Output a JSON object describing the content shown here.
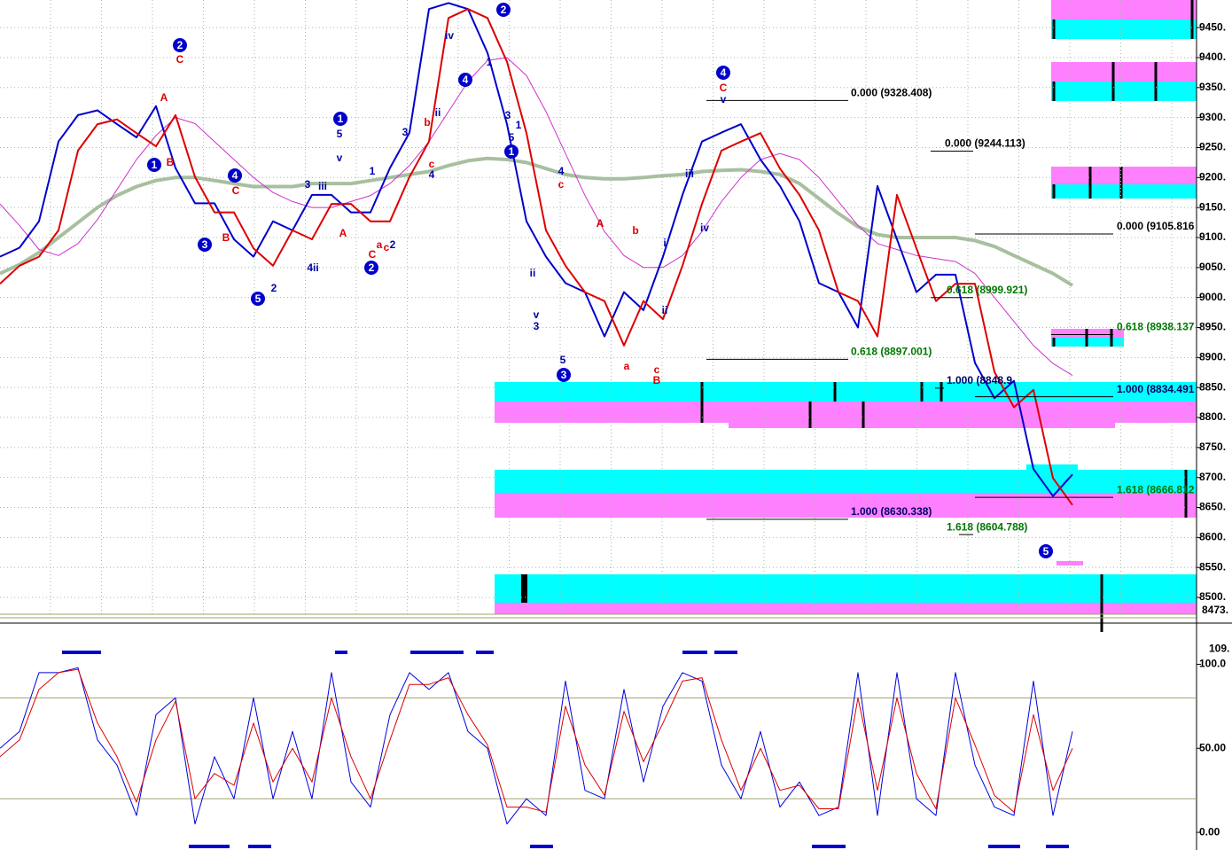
{
  "chart_data": [
    {
      "type": "line",
      "ylim": [
        8469,
        9496
      ],
      "yticks": [
        {
          "value": 9450,
          "label": "9450."
        },
        {
          "value": 9400,
          "label": "9400."
        },
        {
          "value": 9350,
          "label": "9350."
        },
        {
          "value": 9300,
          "label": "9300."
        },
        {
          "value": 9250,
          "label": "9250."
        },
        {
          "value": 9200,
          "label": "9200."
        },
        {
          "value": 9150,
          "label": "9150."
        },
        {
          "value": 9100,
          "label": "9100."
        },
        {
          "value": 9050,
          "label": "9050."
        },
        {
          "value": 9000,
          "label": "9000."
        },
        {
          "value": 8950,
          "label": "8950."
        },
        {
          "value": 8900,
          "label": "8900."
        },
        {
          "value": 8850,
          "label": "8850."
        },
        {
          "value": 8800,
          "label": "8800."
        },
        {
          "value": 8750,
          "label": "8750."
        },
        {
          "value": 8700,
          "label": "8700."
        },
        {
          "value": 8650,
          "label": "8650."
        },
        {
          "value": 8600,
          "label": "8600."
        },
        {
          "value": 8550,
          "label": "8550."
        },
        {
          "value": 8500,
          "label": "8500."
        }
      ],
      "grid": true,
      "series": [
        {
          "color": "#a8bfa0",
          "width": 4,
          "values": [
            9040,
            9055,
            9075,
            9100,
            9125,
            9150,
            9170,
            9185,
            9195,
            9200,
            9200,
            9195,
            9190,
            9185,
            9185,
            9185,
            9190,
            9190,
            9190,
            9195,
            9200,
            9205,
            9210,
            9220,
            9228,
            9232,
            9230,
            9225,
            9215,
            9205,
            9200,
            9198,
            9198,
            9200,
            9203,
            9205,
            9210,
            9212,
            9213,
            9210,
            9205,
            9190,
            9165,
            9140,
            9118,
            9105,
            9100,
            9100,
            9100,
            9100,
            9095,
            9085,
            9070,
            9055,
            9040,
            9020
          ]
        },
        {
          "color": "#cc33cc",
          "width": 1,
          "values": [
            9156,
            9120,
            9080,
            9070,
            9090,
            9130,
            9180,
            9230,
            9270,
            9300,
            9290,
            9260,
            9230,
            9200,
            9175,
            9160,
            9150,
            9150,
            9160,
            9170,
            9190,
            9220,
            9260,
            9310,
            9360,
            9395,
            9400,
            9370,
            9310,
            9240,
            9170,
            9110,
            9070,
            9050,
            9050,
            9070,
            9110,
            9160,
            9200,
            9230,
            9240,
            9230,
            9200,
            9160,
            9120,
            9090,
            9080,
            9070,
            9065,
            9060,
            9040,
            9000,
            8960,
            8920,
            8890,
            8870
          ]
        },
        {
          "color": "#0000cc",
          "width": 2,
          "values": [
            9068,
            9083,
            9127,
            9260,
            9304,
            9312,
            9289,
            9267,
            9319,
            9216,
            9157,
            9157,
            9097,
            9068,
            9127,
            9112,
            9171,
            9171,
            9142,
            9142,
            9216,
            9275,
            9481,
            9491,
            9481,
            9408,
            9289,
            9127,
            9068,
            9024,
            9009,
            8935,
            9009,
            8979,
            9068,
            9171,
            9260,
            9275,
            9289,
            9230,
            9186,
            9127,
            9024,
            9009,
            8950,
            9186,
            9097,
            9009,
            9038,
            9038,
            8891,
            8832,
            8861,
            8714,
            8669,
            8705
          ]
        },
        {
          "color": "#dd0000",
          "width": 2,
          "values": [
            9023,
            9053,
            9068,
            9112,
            9245,
            9289,
            9297,
            9274,
            9252,
            9304,
            9201,
            9142,
            9142,
            9082,
            9053,
            9112,
            9097,
            9156,
            9156,
            9127,
            9127,
            9201,
            9260,
            9466,
            9481,
            9466,
            9393,
            9274,
            9112,
            9053,
            9009,
            8994,
            8920,
            8994,
            8964,
            9053,
            9156,
            9245,
            9260,
            9274,
            9215,
            9171,
            9112,
            9009,
            8994,
            8935,
            9171,
            9082,
            8994,
            9023,
            9023,
            8876,
            8817,
            8846,
            8699,
            8654
          ]
        }
      ],
      "fib_levels": [
        {
          "value": 9328.408,
          "label": "0.000 (9328.408)",
          "color": "#000000"
        },
        {
          "value": 9244.113,
          "label": "0.000 (9244.113)",
          "color": "#000000"
        },
        {
          "value": 9105.816,
          "label": "0.000 (9105.816",
          "color": "#000000"
        },
        {
          "value": 8999.921,
          "label": "0.618 (8999.921)",
          "color": "#007700"
        },
        {
          "value": 8938.137,
          "label": "0.618 (8938.137",
          "color": "#007700"
        },
        {
          "value": 8897.001,
          "label": "0.618 (8897.001)",
          "color": "#007700"
        },
        {
          "value": 8848.9,
          "label": "1.000 (8848.9",
          "color": "#000066"
        },
        {
          "value": 8834.491,
          "label": "1.000 (8834.491",
          "color": "#000066"
        },
        {
          "value": 8666.812,
          "label": "1.618 (8666.812",
          "color": "#007700"
        },
        {
          "value": 8630.338,
          "label": "1.000 (8630.338)",
          "color": "#000066"
        },
        {
          "value": 8604.788,
          "label": "1.618 (8604.788)",
          "color": "#007700"
        }
      ],
      "last_value": {
        "value": 8473,
        "label": "8473."
      },
      "wave_labels": [
        "1",
        "2",
        "3",
        "4",
        "5",
        "1",
        "2",
        "3",
        "4",
        "2",
        "1",
        "4",
        "5",
        "C",
        "A",
        "B",
        "C",
        "B",
        "C",
        "A",
        "A",
        "B",
        "a",
        "b",
        "c",
        "C",
        "c",
        "b",
        "c",
        "5",
        "v",
        "3",
        "iii",
        "1",
        "3",
        "4",
        "iv",
        "ii",
        "1",
        "3",
        "5",
        "1",
        "4",
        "v",
        "3",
        "5",
        "ii",
        "iii",
        "iv",
        "i",
        "ii",
        "v",
        "2",
        "4ii",
        "a",
        "c",
        "2"
      ]
    },
    {
      "type": "line",
      "ylim": [
        -10.5,
        124.5
      ],
      "yticks": [
        {
          "value": 100,
          "label": "100.0"
        },
        {
          "value": 50,
          "label": "50.00"
        },
        {
          "value": 0,
          "label": "0.00"
        }
      ],
      "levels": [
        80,
        20
      ],
      "top_value": {
        "value": 109,
        "label": "109."
      },
      "series": [
        {
          "color": "#0000dd",
          "width": 1,
          "values": [
            50,
            60,
            95,
            95,
            98,
            55,
            40,
            10,
            70,
            80,
            5,
            45,
            20,
            80,
            20,
            60,
            20,
            95,
            30,
            15,
            70,
            95,
            85,
            95,
            60,
            50,
            5,
            20,
            10,
            90,
            25,
            20,
            85,
            30,
            75,
            95,
            90,
            40,
            20,
            60,
            15,
            30,
            10,
            15,
            95,
            10,
            95,
            20,
            10,
            95,
            40,
            15,
            10,
            90,
            10,
            60
          ]
        },
        {
          "color": "#dd0000",
          "width": 1,
          "values": [
            45,
            55,
            85,
            95,
            97,
            65,
            45,
            18,
            55,
            78,
            20,
            35,
            28,
            65,
            30,
            50,
            30,
            80,
            45,
            20,
            55,
            88,
            88,
            92,
            70,
            52,
            15,
            15,
            12,
            75,
            40,
            22,
            72,
            42,
            65,
            90,
            92,
            55,
            25,
            50,
            25,
            28,
            14,
            14,
            80,
            25,
            80,
            35,
            14,
            80,
            52,
            22,
            12,
            70,
            25,
            50
          ]
        }
      ]
    }
  ]
}
